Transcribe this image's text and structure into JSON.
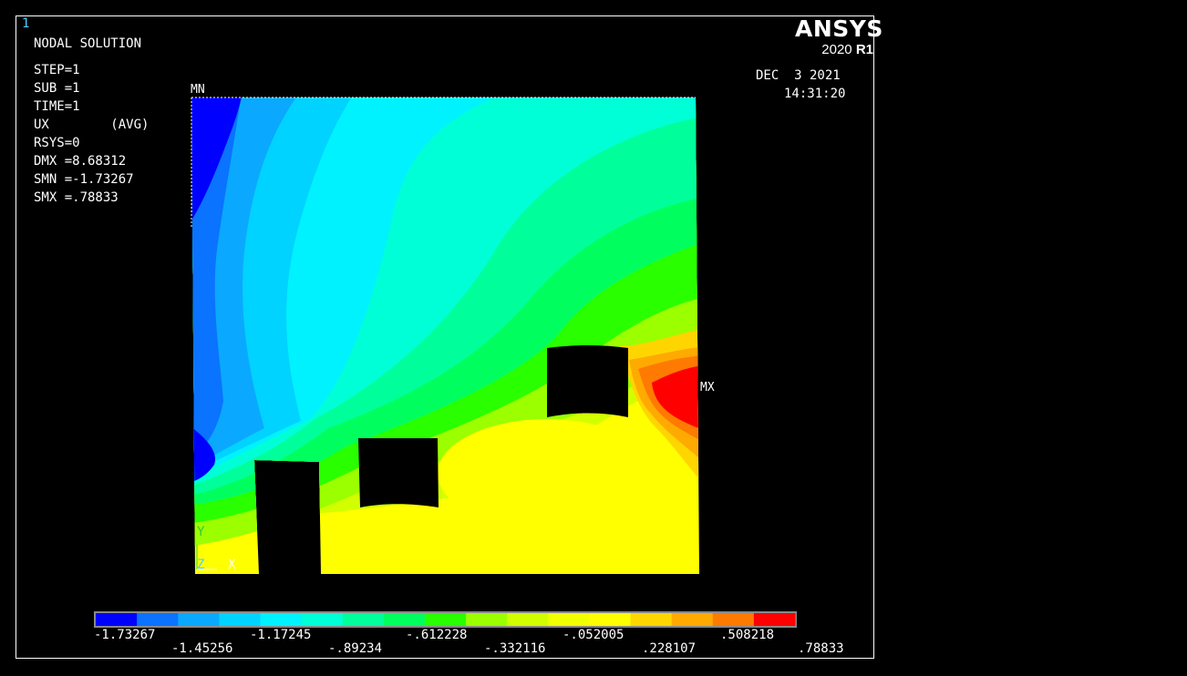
{
  "window_number": "1",
  "logo": {
    "brand": "ANSYS",
    "version_prefix": "2020",
    "version_suffix": "R1"
  },
  "info": {
    "title": "NODAL SOLUTION",
    "step": "STEP=1",
    "sub": "SUB =1",
    "time": "TIME=1",
    "component": "UX        (AVG)",
    "rsys": "RSYS=0",
    "dmx": "DMX =8.68312",
    "smn": "SMN =-1.73267",
    "smx": "SMX =.78833"
  },
  "date": "DEC  3 2021",
  "time_of_day": "14:31:20",
  "markers": {
    "min": "MN",
    "max": "MX"
  },
  "triad": {
    "y": "Y",
    "z": "Z",
    "x": "X"
  },
  "triad_colors": {
    "y": "#2ecc40",
    "z": "#4fd0ff",
    "x": "#ffffff"
  },
  "legend": {
    "colors": [
      "#0000ff",
      "#0a73ff",
      "#0aa9ff",
      "#00d3ff",
      "#00f2ff",
      "#00ffd6",
      "#00ff9b",
      "#00ff5e",
      "#2aff00",
      "#9bff00",
      "#d2ff00",
      "#f2ff00",
      "#ffff00",
      "#ffd500",
      "#ffaa00",
      "#ff7a00",
      "#ff0000"
    ],
    "labels_top": [
      "-1.73267",
      "-1.17245",
      "-.612228",
      "-.052005",
      ".508218"
    ],
    "labels_bottom": [
      "-1.45256",
      "-.89234",
      "-.332116",
      ".228107",
      ".78833"
    ]
  }
}
